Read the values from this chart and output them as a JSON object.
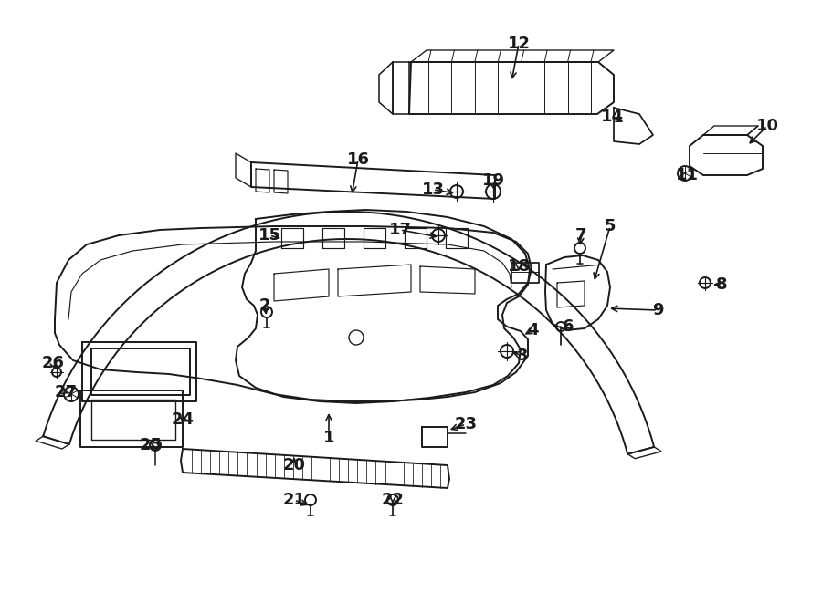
{
  "bg_color": "#ffffff",
  "line_color": "#1a1a1a",
  "fig_width": 9.0,
  "fig_height": 6.61,
  "dpi": 100,
  "font_size": 13,
  "line_width": 1.4
}
